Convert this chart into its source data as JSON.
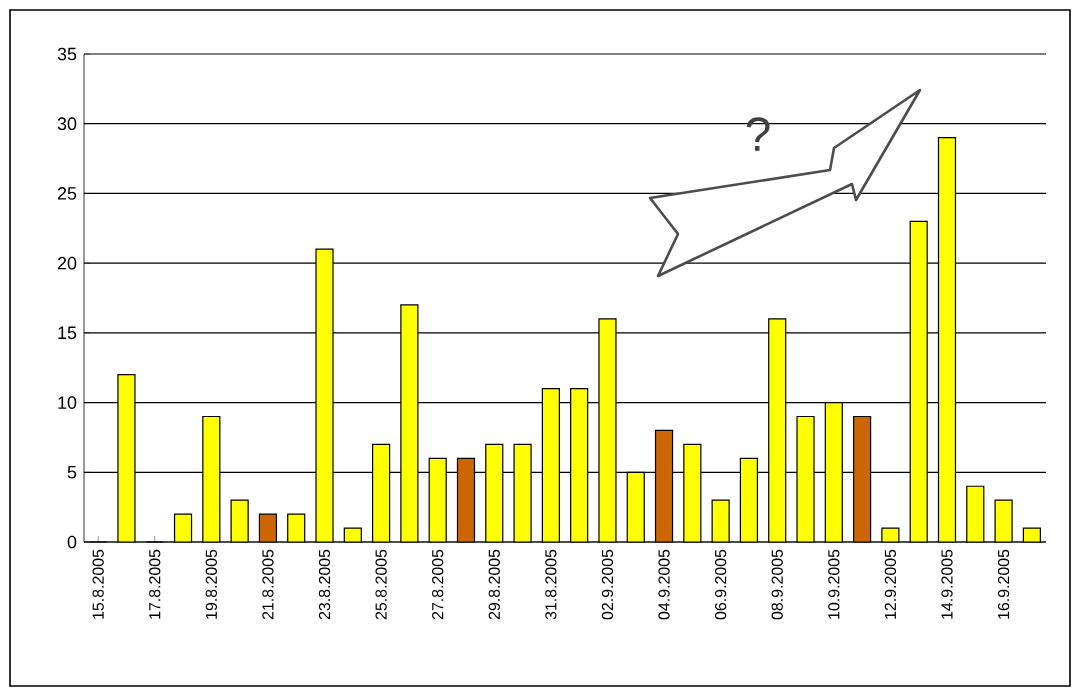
{
  "chart_data": {
    "type": "bar",
    "categories": [
      "15.8.2005",
      null,
      "17.8.2005",
      null,
      "19.8.2005",
      null,
      "21.8.2005",
      null,
      "23.8.2005",
      null,
      "25.8.2005",
      null,
      "27.8.2005",
      null,
      "29.8.2005",
      null,
      "31.8.2005",
      null,
      "02.9.2005",
      null,
      "04.9.2005",
      null,
      "06.9.2005",
      null,
      "08.9.2005",
      null,
      "10.9.2005",
      null,
      "12.9.2005",
      null,
      "14.9.2005",
      null,
      "16.9.2005",
      null
    ],
    "values": [
      0,
      12,
      0,
      2,
      9,
      3,
      2,
      2,
      21,
      1,
      7,
      17,
      6,
      6,
      7,
      7,
      11,
      11,
      16,
      5,
      8,
      7,
      3,
      6,
      16,
      9,
      10,
      9,
      1,
      23,
      29,
      4,
      3,
      1
    ],
    "colors": [
      "#ffff00",
      "#ffff00",
      "#ffff00",
      "#ffff00",
      "#ffff00",
      "#ffff00",
      "#cc6600",
      "#ffff00",
      "#ffff00",
      "#ffff00",
      "#ffff00",
      "#ffff00",
      "#ffff00",
      "#cc6600",
      "#ffff00",
      "#ffff00",
      "#ffff00",
      "#ffff00",
      "#ffff00",
      "#ffff00",
      "#cc6600",
      "#ffff00",
      "#ffff00",
      "#ffff00",
      "#ffff00",
      "#ffff00",
      "#ffff00",
      "#cc6600",
      "#ffff00",
      "#ffff00",
      "#ffff00",
      "#ffff00",
      "#ffff00",
      "#ffff00"
    ],
    "ylim": [
      0,
      35
    ],
    "yticks": [
      0,
      5,
      10,
      15,
      20,
      25,
      30,
      35
    ],
    "grid": "y",
    "annotations": [
      "?"
    ]
  }
}
